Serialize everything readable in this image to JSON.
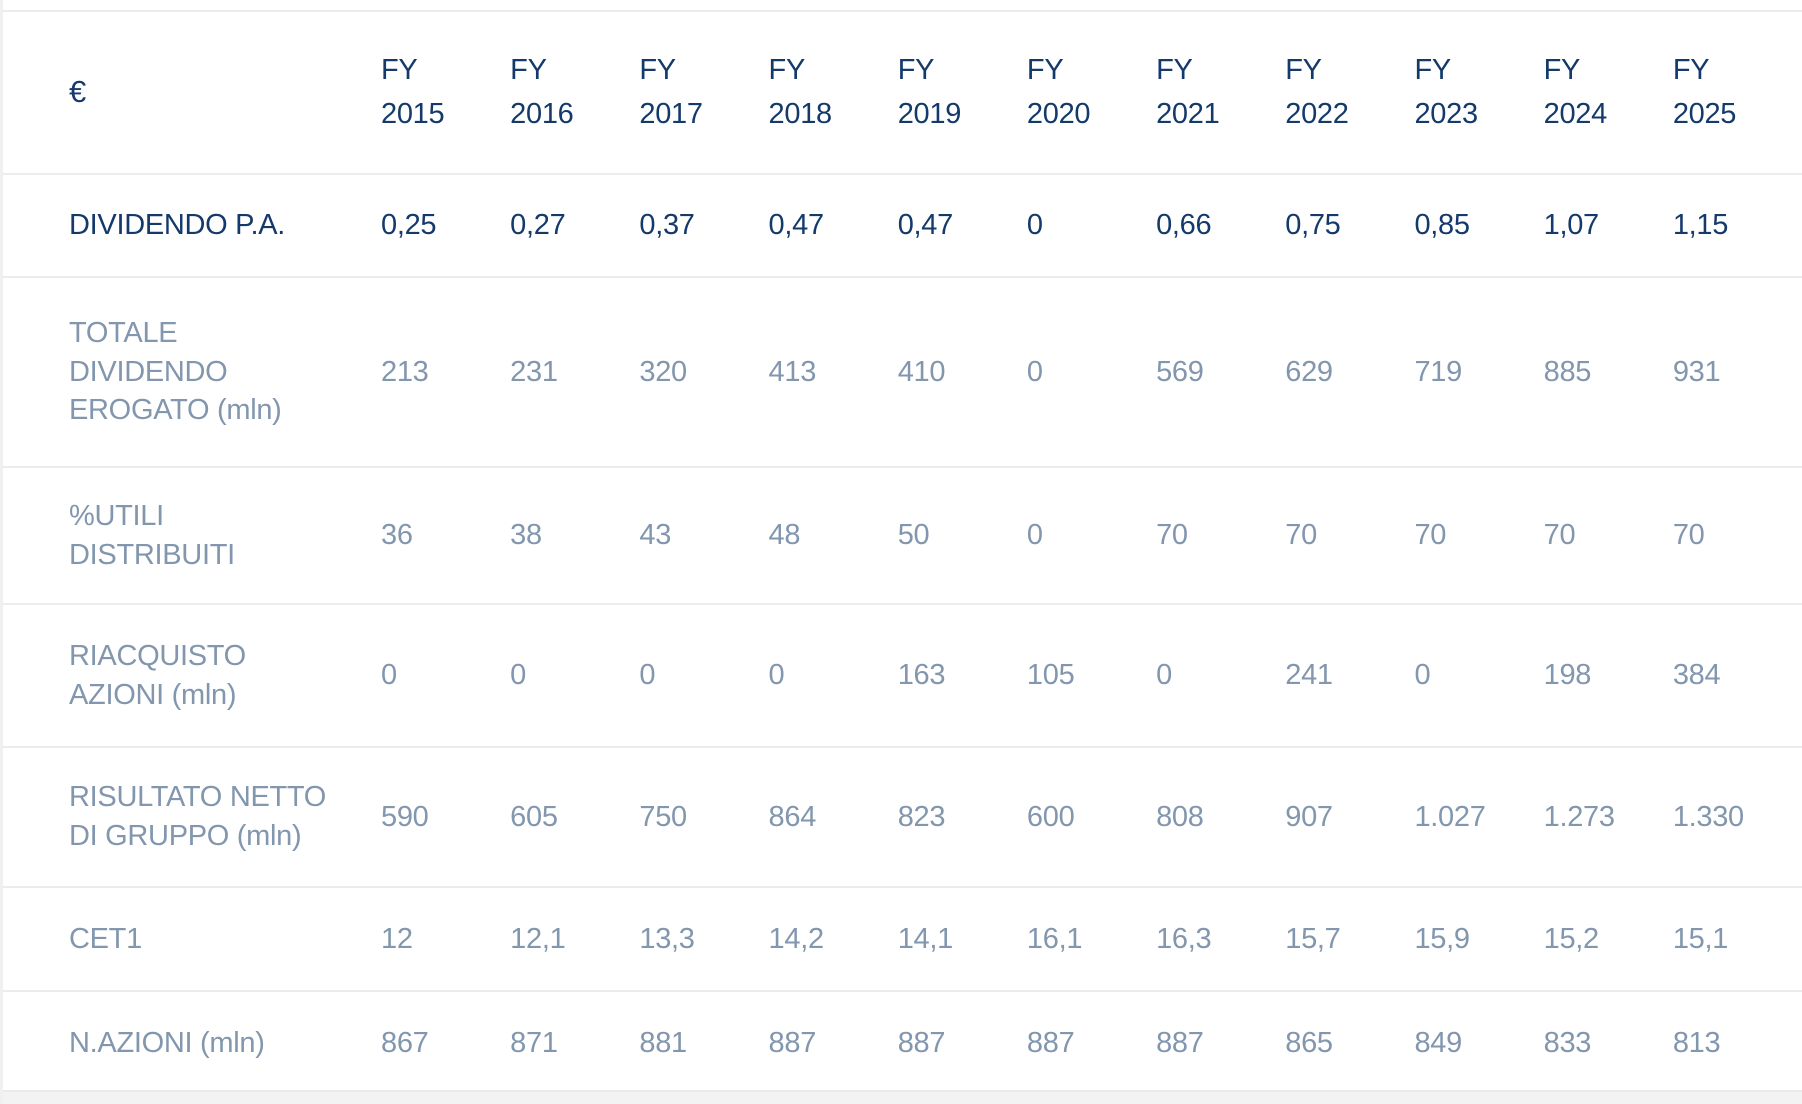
{
  "chart_data": {
    "type": "table",
    "unit_header": "€",
    "columns": [
      "FY\n2015",
      "FY\n2016",
      "FY\n2017",
      "FY\n2018",
      "FY\n2019",
      "FY\n2020",
      "FY\n2021",
      "FY\n2022",
      "FY\n2023",
      "FY\n2024",
      "FY\n2025"
    ],
    "rows": [
      {
        "label": "DIVIDENDO P.A.",
        "style": "primary",
        "values": [
          "0,25",
          "0,27",
          "0,37",
          "0,47",
          "0,47",
          "0",
          "0,66",
          "0,75",
          "0,85",
          "1,07",
          "1,15"
        ]
      },
      {
        "label": "TOTALE\nDIVIDENDO\nEROGATO (mln)",
        "style": "muted",
        "values": [
          "213",
          "231",
          "320",
          "413",
          "410",
          "0",
          "569",
          "629",
          "719",
          "885",
          "931"
        ]
      },
      {
        "label": "%UTILI\nDISTRIBUITI",
        "style": "muted",
        "values": [
          "36",
          "38",
          "43",
          "48",
          "50",
          "0",
          "70",
          "70",
          "70",
          "70",
          "70"
        ]
      },
      {
        "label": "RIACQUISTO\nAZIONI (mln)",
        "style": "muted",
        "values": [
          "0",
          "0",
          "0",
          "0",
          "163",
          "105",
          "0",
          "241",
          "0",
          "198",
          "384"
        ]
      },
      {
        "label": "RISULTATO NETTO\nDI GRUPPO (mln)",
        "style": "muted",
        "values": [
          "590",
          "605",
          "750",
          "864",
          "823",
          "600",
          "808",
          "907",
          "1.027",
          "1.273",
          "1.330"
        ]
      },
      {
        "label": "CET1",
        "style": "muted",
        "values": [
          "12",
          "12,1",
          "13,3",
          "14,2",
          "14,1",
          "16,1",
          "16,3",
          "15,7",
          "15,9",
          "15,2",
          "15,1"
        ]
      },
      {
        "label": "N.AZIONI (mln)",
        "style": "muted",
        "values": [
          "867",
          "871",
          "881",
          "887",
          "887",
          "887",
          "887",
          "865",
          "849",
          "833",
          "813"
        ]
      }
    ]
  },
  "colors": {
    "primary_text": "#14396b",
    "secondary_text": "#8296ae",
    "divider": "#ececec",
    "footer_strip": "#f3f3f3",
    "background": "#ffffff"
  }
}
